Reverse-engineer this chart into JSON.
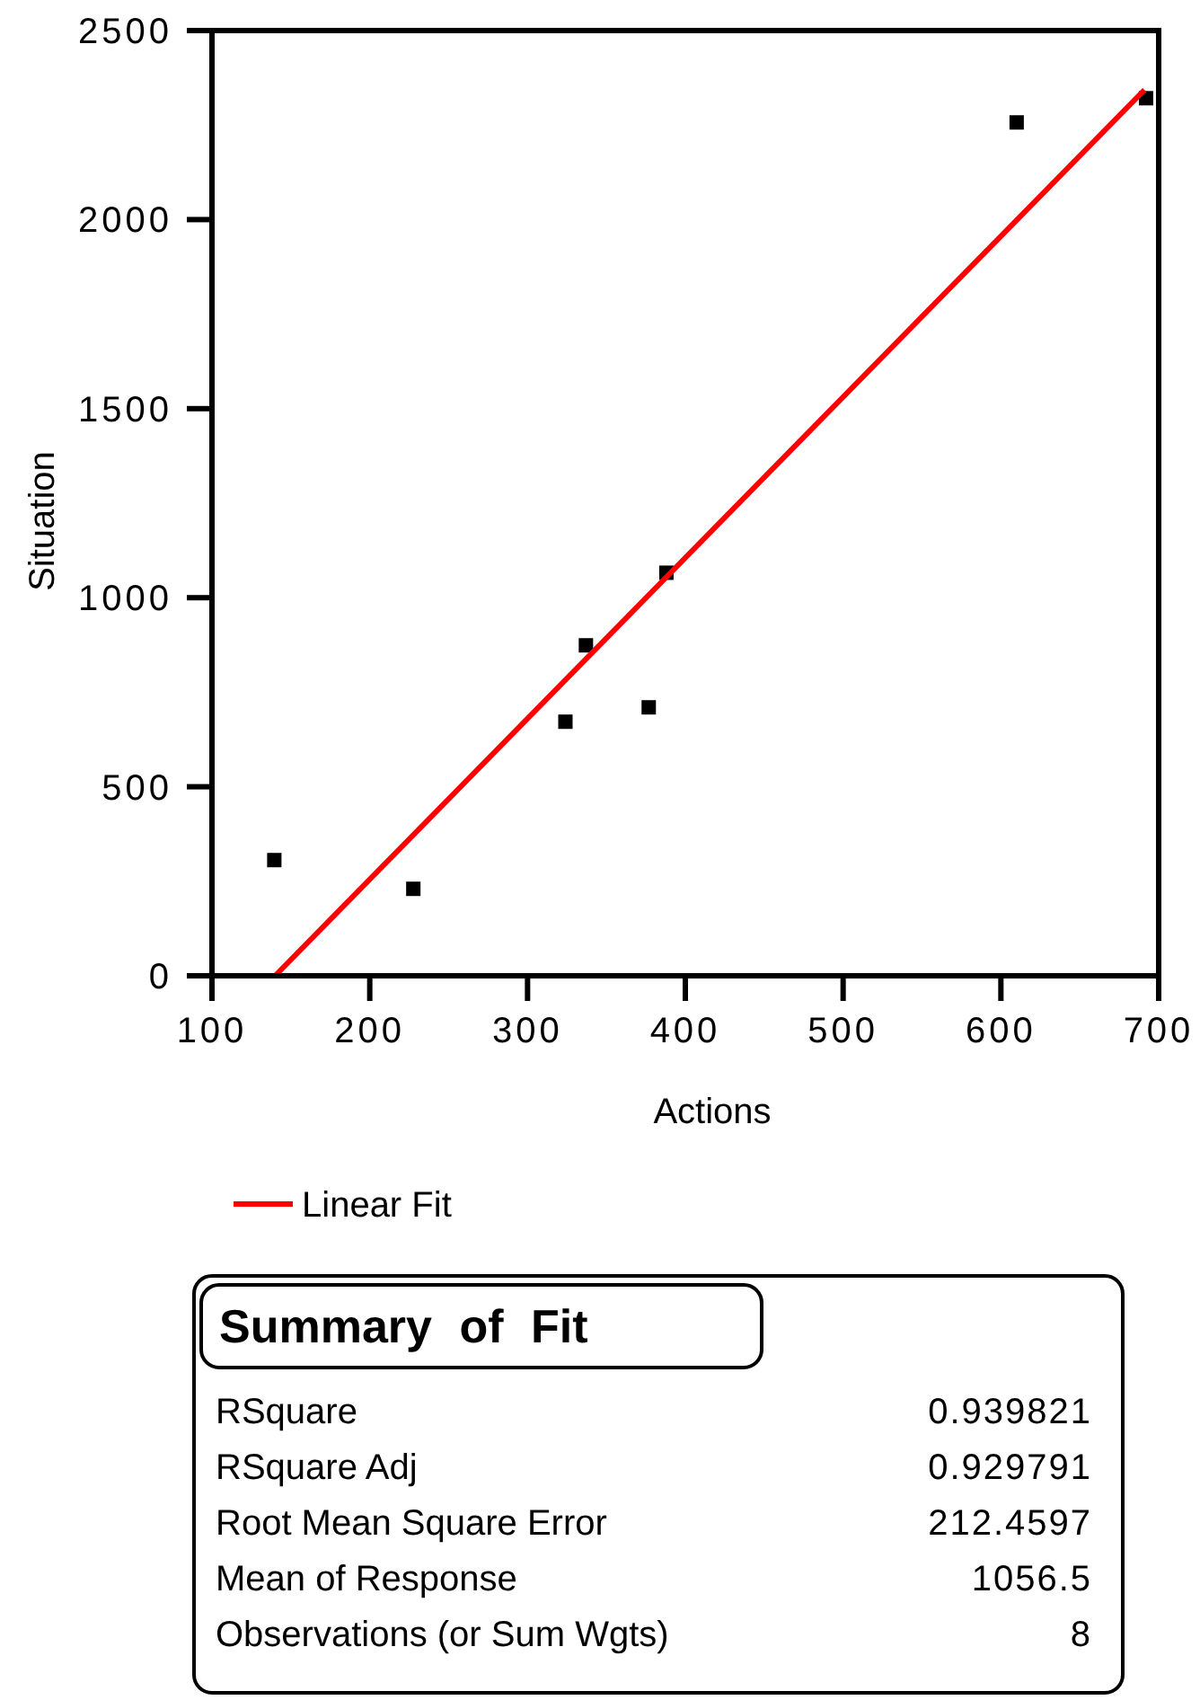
{
  "chart_data": {
    "type": "scatter",
    "xlabel": "Actions",
    "ylabel": "Situation",
    "xlim": [
      100,
      700
    ],
    "xticks": [
      100,
      200,
      300,
      400,
      500,
      600,
      700
    ],
    "ylim": [
      0,
      2500
    ],
    "yticks": [
      0,
      500,
      1000,
      1500,
      2000,
      2500
    ],
    "grid": false,
    "legend": "bottom",
    "marker": "square",
    "series": [
      {
        "color": "#000000",
        "x": [
          139.5,
          227.6,
          324,
          337,
          376.8,
          388,
          610,
          692
        ],
        "values": [
          306,
          230,
          672,
          874,
          710,
          1066,
          2257,
          2321
        ]
      },
      {
        "type": "line",
        "name": "Linear Fit",
        "color": "#ff0000",
        "line_style": "solid",
        "marker": "none",
        "x": [
          140,
          691
        ],
        "values": [
          0,
          2343
        ]
      }
    ],
    "annotations": [
      "Summary of Fit",
      "RSquare",
      "0.939821",
      "RSquare Adj",
      "0.929791",
      "Root Mean Square Error",
      "212.4597",
      "Mean of Response",
      "1056.5",
      "Observations (or Sum Wgts)",
      "8"
    ]
  }
}
